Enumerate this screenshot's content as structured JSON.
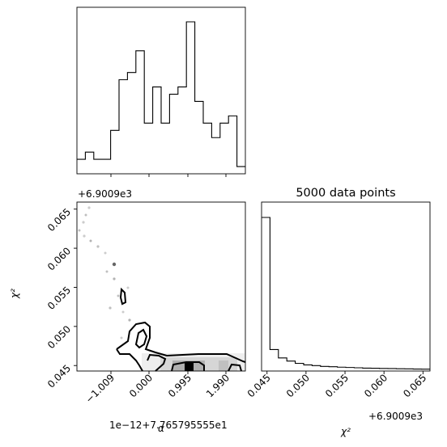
{
  "chart_data": [
    {
      "panel": "top-left",
      "type": "histogram-step",
      "param": "α",
      "bin_heights": [
        2,
        3,
        2,
        2,
        6,
        13,
        14,
        17,
        7,
        12,
        7,
        11,
        12,
        21,
        10,
        7,
        5,
        7,
        8,
        1
      ],
      "x_ticks": [
        "−1.009",
        "0.000",
        "0.995",
        "1.990"
      ],
      "y_ticks": []
    },
    {
      "panel": "bottom-left",
      "type": "2d-density-contour",
      "xlabel": "α",
      "ylabel": "χ²",
      "x_ticks": [
        "−1.009",
        "0.000",
        "0.995",
        "1.990"
      ],
      "y_ticks": [
        "0.045",
        "0.050",
        "0.055",
        "0.060",
        "0.065"
      ],
      "ylim": [
        0.0443,
        0.0659
      ],
      "y_offset_text": "+6.9009e3",
      "x_offset_text": "1e−12+7.765795555e1"
    },
    {
      "panel": "bottom-right",
      "type": "histogram-step",
      "title": "5000 data points",
      "xlabel": "χ²",
      "x_ticks": [
        "0.045",
        "0.050",
        "0.055",
        "0.060",
        "0.065"
      ],
      "xlim": [
        0.0443,
        0.0659
      ],
      "x_offset_text": "+6.9009e3",
      "bin_heights": [
        100,
        14,
        8.5,
        6.5,
        5,
        4,
        3.5,
        3,
        2.8,
        2.5,
        2.3,
        2.1,
        1.9,
        1.8,
        1.7,
        1.6,
        1.5,
        1.4,
        1.3,
        1.2
      ]
    }
  ]
}
